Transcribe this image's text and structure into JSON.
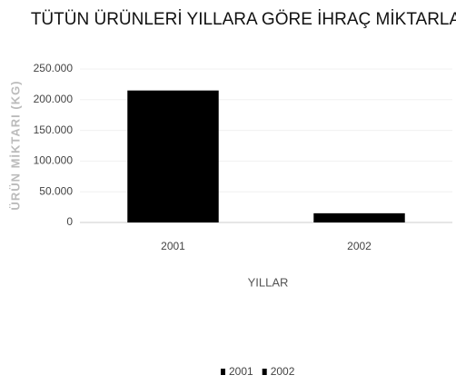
{
  "chart_data": {
    "type": "bar",
    "title": "TÜTÜN ÜRÜNLERİ YILLARA GÖRE İHRAÇ MİKTARLARI",
    "x_label": "YILLAR",
    "y_label": "ÜRÜN MİKTARI (KG)",
    "categories": [
      "2001",
      "2002"
    ],
    "series": [
      {
        "name": "2001",
        "color": "#000000",
        "values": [
          215000,
          null
        ]
      },
      {
        "name": "2002",
        "color": "#000000",
        "values": [
          null,
          15000
        ]
      }
    ],
    "ylim": [
      0,
      250000
    ],
    "yticks": [
      0,
      {
        "value": 50000,
        "label": "50.000"
      },
      {
        "value": 100000,
        "label": "100.000"
      },
      {
        "value": 150000,
        "label": "150.000"
      },
      {
        "value": 200000,
        "label": "200.000"
      },
      {
        "value": 250000,
        "label": "250.000"
      }
    ],
    "grid": true,
    "legend": "bottom"
  }
}
